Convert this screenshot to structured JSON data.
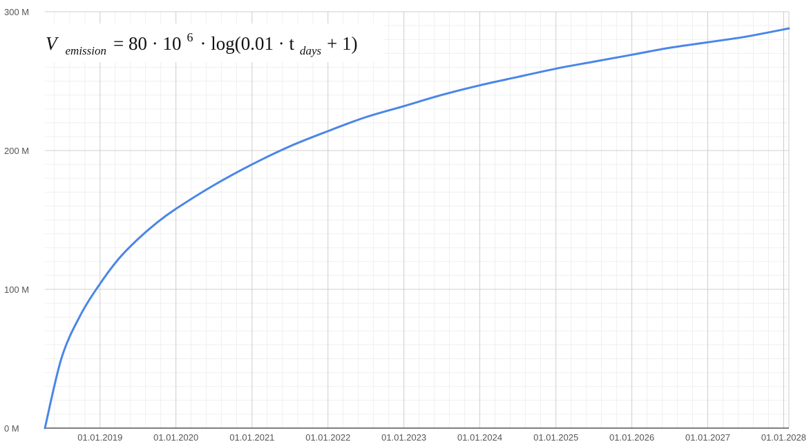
{
  "chart_data": {
    "type": "line",
    "title": "",
    "xlabel": "",
    "ylabel": "",
    "formula": {
      "v": "V",
      "v_sub": "emission",
      "eq": "= 80 · 10",
      "exp": "6",
      "mid": "· log(0.01 · t",
      "t_sub": "days",
      "tail": "+ 1)"
    },
    "ylim": [
      0,
      300000000
    ],
    "y_ticks": [
      {
        "value": 0,
        "label": "0 M"
      },
      {
        "value": 100000000,
        "label": "100 M"
      },
      {
        "value": 200000000,
        "label": "200 M"
      },
      {
        "value": 300000000,
        "label": "300 M"
      }
    ],
    "xlim": [
      "2018-04-11",
      "2028-01-26"
    ],
    "x_ticks": [
      {
        "value": "2019-01-01",
        "label": "01.01.2019"
      },
      {
        "value": "2020-01-01",
        "label": "01.01.2020"
      },
      {
        "value": "2021-01-01",
        "label": "01.01.2021"
      },
      {
        "value": "2022-01-01",
        "label": "01.01.2022"
      },
      {
        "value": "2023-01-01",
        "label": "01.01.2023"
      },
      {
        "value": "2024-01-01",
        "label": "01.01.2024"
      },
      {
        "value": "2025-01-01",
        "label": "01.01.2025"
      },
      {
        "value": "2026-01-01",
        "label": "01.01.2026"
      },
      {
        "value": "2027-01-01",
        "label": "01.01.2027"
      },
      {
        "value": "2028-01-01",
        "label": "01.01.2028"
      }
    ],
    "grid": true,
    "minor_grid": true,
    "series": [
      {
        "color": "#4a86e8",
        "x": [
          "2018-04-11",
          "2018-07-01",
          "2018-10-01",
          "2019-01-01",
          "2019-04-01",
          "2019-07-01",
          "2019-10-01",
          "2020-01-01",
          "2020-07-01",
          "2021-01-01",
          "2021-07-01",
          "2022-01-01",
          "2022-07-01",
          "2023-01-01",
          "2023-07-01",
          "2024-01-01",
          "2024-07-01",
          "2025-01-01",
          "2025-07-01",
          "2026-01-01",
          "2026-07-01",
          "2027-01-01",
          "2027-07-01",
          "2028-01-26"
        ],
        "y": [
          0,
          51000000,
          82000000,
          104000000,
          122000000,
          136000000,
          148000000,
          158000000,
          175000000,
          190000000,
          203000000,
          214000000,
          224000000,
          232000000,
          240000000,
          247000000,
          253000000,
          259000000,
          264000000,
          269000000,
          274000000,
          278000000,
          282000000,
          288000000
        ]
      }
    ]
  }
}
